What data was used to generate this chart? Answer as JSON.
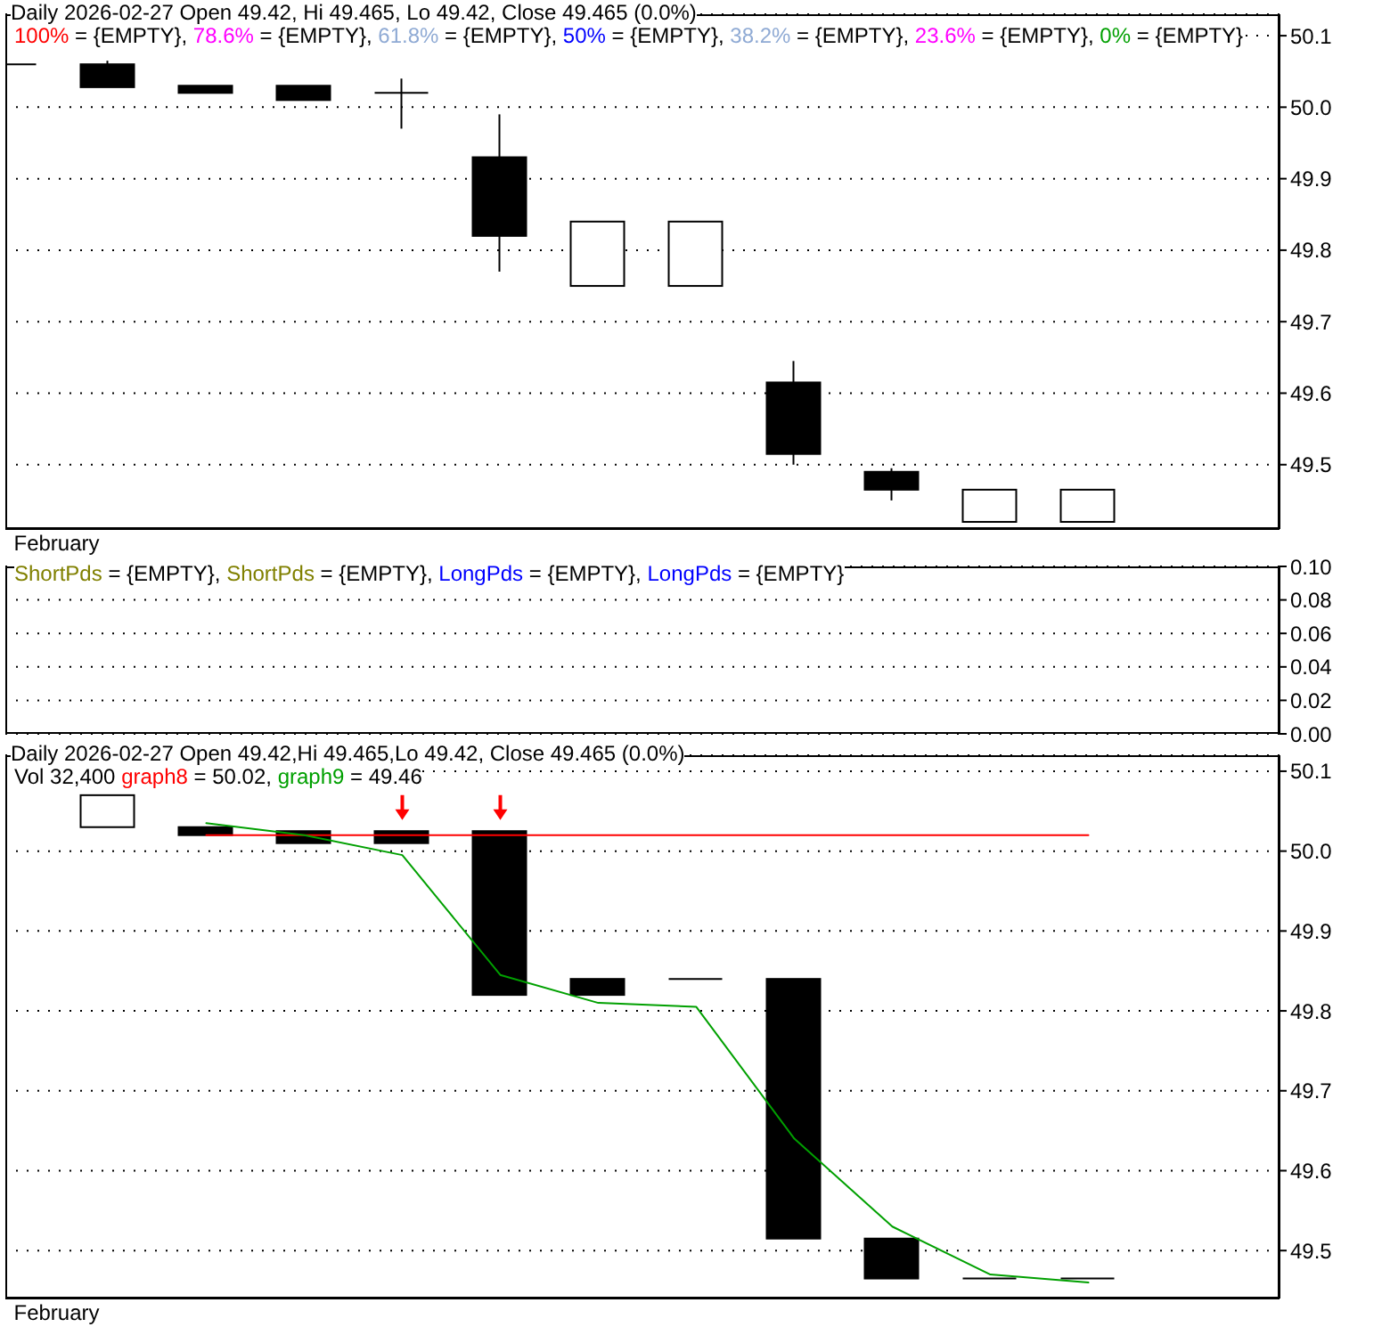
{
  "chart_data": [
    {
      "type": "candlestick",
      "title": "Daily 2026-02-27 Open 49.42, Hi 49.465, Lo 49.42, Close 49.465 (0.0%)",
      "categories": [
        "February",
        null,
        null,
        null,
        null,
        null,
        null,
        null,
        null,
        null,
        null,
        null
      ],
      "ohlc": [
        [
          50.06,
          50.06,
          50.06,
          50.06
        ],
        [
          50.06,
          50.065,
          50.028,
          50.028
        ],
        [
          50.03,
          50.03,
          50.02,
          50.02
        ],
        [
          50.03,
          50.03,
          50.01,
          50.01
        ],
        [
          50.02,
          50.04,
          49.97,
          50.02
        ],
        [
          49.93,
          49.99,
          49.77,
          49.82
        ],
        [
          49.75,
          49.84,
          49.75,
          49.84
        ],
        [
          49.75,
          49.84,
          49.75,
          49.84
        ],
        [
          49.615,
          49.645,
          49.5,
          49.515
        ],
        [
          49.49,
          49.495,
          49.45,
          49.465
        ],
        [
          49.42,
          49.465,
          49.42,
          49.465
        ],
        [
          49.42,
          49.465,
          49.42,
          49.465
        ]
      ],
      "series": [
        {
          "type": "line",
          "name": "100% = {EMPTY},",
          "color": "#ff0000",
          "values": [
            null,
            null,
            null,
            null,
            null,
            null,
            null,
            null,
            null,
            null,
            null,
            null
          ]
        },
        {
          "type": "line",
          "name": "78.6% = {EMPTY},",
          "color": "#ff00ff",
          "values": [
            null,
            null,
            null,
            null,
            null,
            null,
            null,
            null,
            null,
            null,
            null,
            null
          ]
        },
        {
          "type": "line",
          "name": "61.8% = {EMPTY},",
          "color": "#8faad4",
          "values": [
            null,
            null,
            null,
            null,
            null,
            null,
            null,
            null,
            null,
            null,
            null,
            null
          ]
        },
        {
          "type": "line",
          "name": "50% = {EMPTY},",
          "color": "#0000ff",
          "values": [
            null,
            null,
            null,
            null,
            null,
            null,
            null,
            null,
            null,
            null,
            null,
            null
          ]
        },
        {
          "type": "line",
          "name": "38.2% = {EMPTY},",
          "color": "#8faad4",
          "values": [
            null,
            null,
            null,
            null,
            null,
            null,
            null,
            null,
            null,
            null,
            null,
            null
          ]
        },
        {
          "type": "line",
          "name": "23.6% = {EMPTY},",
          "color": "#ff00ff",
          "values": [
            null,
            null,
            null,
            null,
            null,
            null,
            null,
            null,
            null,
            null,
            null,
            null
          ]
        },
        {
          "type": "line",
          "name": "0% = {EMPTY}",
          "color": "#00a000",
          "values": [
            null,
            null,
            null,
            null,
            null,
            null,
            null,
            null,
            null,
            null,
            null,
            null
          ]
        }
      ],
      "ylim": [
        49.41,
        50.13
      ],
      "yticks": [
        50.1,
        {
          "value": 50,
          "label": "50.0"
        },
        49.9,
        49.8,
        49.7,
        49.6,
        49.5
      ],
      "grid": "y"
    },
    {
      "type": "line",
      "categories": [
        null,
        null,
        null,
        null,
        null,
        null,
        null,
        null,
        null,
        null,
        null,
        null
      ],
      "series": [
        {
          "name": "ShortPds = {EMPTY},",
          "color": "#808000",
          "values": [
            null,
            null,
            null,
            null,
            null,
            null,
            null,
            null,
            null,
            null,
            null,
            null
          ]
        },
        {
          "name": "ShortPds = {EMPTY},",
          "color": "#808000",
          "values": [
            null,
            null,
            null,
            null,
            null,
            null,
            null,
            null,
            null,
            null,
            null,
            null
          ]
        },
        {
          "name": "LongPds = {EMPTY},",
          "color": "#0000ff",
          "values": [
            null,
            null,
            null,
            null,
            null,
            null,
            null,
            null,
            null,
            null,
            null,
            null
          ]
        },
        {
          "name": "LongPds = {EMPTY}",
          "color": "#0000ff",
          "values": [
            null,
            null,
            null,
            null,
            null,
            null,
            null,
            null,
            null,
            null,
            null,
            null
          ]
        }
      ],
      "ylim": [
        0,
        0.1
      ],
      "yticks": [
        {
          "value": 0.1,
          "label": "0.10"
        },
        0.08,
        0.06,
        0.04,
        0.02,
        {
          "value": 0,
          "label": "0.00"
        }
      ],
      "grid": "y",
      "tick_labels": "y"
    },
    {
      "type": "candlestick",
      "title": "Daily 2026-02-27 Open 49.42,Hi 49.465,Lo 49.42, Close 49.465 (0.0%)",
      "subtitle": "Vol 32,400",
      "categories": [
        "February",
        null,
        null,
        null,
        null,
        null,
        null,
        null,
        null,
        null,
        null,
        null
      ],
      "ohlc": [
        null,
        [
          50.03,
          50.07,
          50.03,
          50.07
        ],
        [
          50.03,
          50.03,
          50.02,
          50.02
        ],
        [
          50.025,
          50.025,
          50.01,
          50.01
        ],
        [
          50.025,
          50.025,
          50.01,
          50.01
        ],
        [
          50.025,
          50.025,
          49.82,
          49.82
        ],
        [
          49.84,
          49.84,
          49.82,
          49.82
        ],
        [
          49.84,
          49.84,
          49.84,
          49.84
        ],
        [
          49.84,
          49.84,
          49.515,
          49.515
        ],
        [
          49.515,
          49.515,
          49.465,
          49.465
        ],
        [
          49.465,
          49.465,
          49.465,
          49.465
        ],
        [
          49.465,
          49.465,
          49.465,
          49.465
        ]
      ],
      "series": [
        {
          "type": "line",
          "name": "graph8 = 50.02,",
          "color": "#ff0000",
          "values": [
            null,
            null,
            50.02,
            50.02,
            50.02,
            50.02,
            50.02,
            50.02,
            50.02,
            50.02,
            50.02,
            50.02
          ]
        },
        {
          "type": "line",
          "name": "graph9 = 49.46",
          "color": "#00a000",
          "values": [
            null,
            null,
            50.035,
            50.02,
            49.995,
            49.845,
            49.81,
            49.805,
            49.64,
            49.53,
            49.47,
            49.46
          ]
        },
        {
          "type": "scatter",
          "color": "#ff0000",
          "values": [
            null,
            null,
            null,
            null,
            50.05,
            50.05,
            null,
            null,
            null,
            null,
            null,
            null
          ]
        }
      ],
      "ylim": [
        49.44,
        50.12
      ],
      "yticks": [
        50.1,
        {
          "value": 50,
          "label": "50.0"
        },
        49.9,
        49.8,
        49.7,
        49.6,
        49.5
      ],
      "grid": "y"
    }
  ]
}
